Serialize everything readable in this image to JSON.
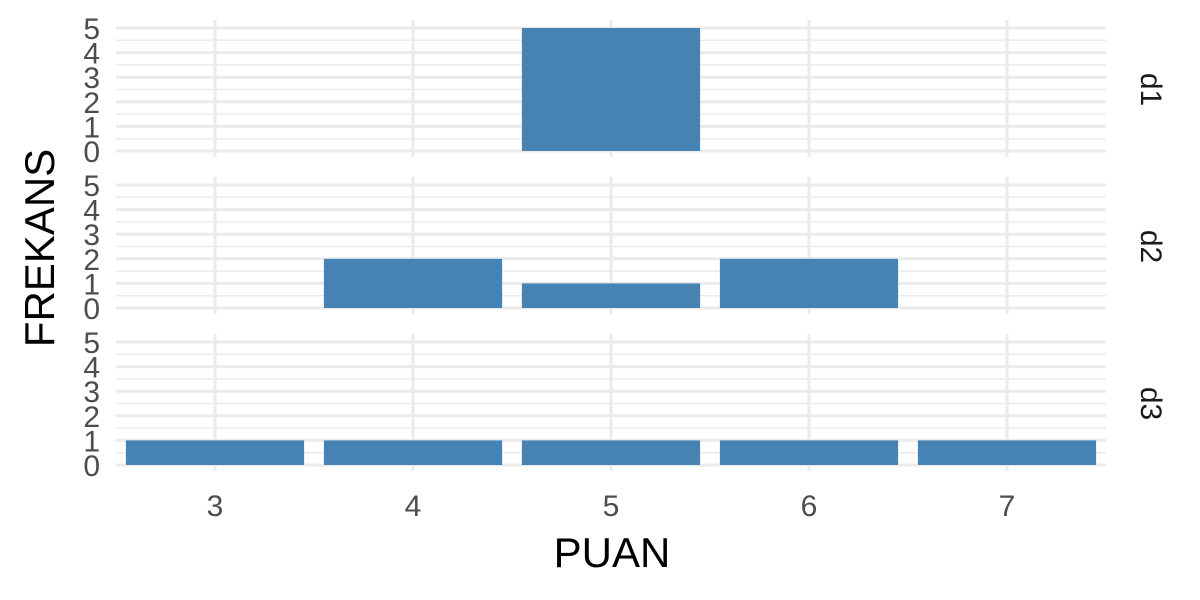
{
  "chart_data": {
    "type": "bar",
    "xlabel": "PUAN",
    "ylabel": "FREKANS",
    "x_ticks": [
      "3",
      "4",
      "5",
      "6",
      "7"
    ],
    "y_ticks": [
      "0",
      "1",
      "2",
      "3",
      "4",
      "5"
    ],
    "ylim": [
      0,
      5
    ],
    "xlim": [
      2.5,
      7.5
    ],
    "bar_color": "#4682b4",
    "grid_color": "#ebebeb",
    "grid": true,
    "facets": [
      {
        "label": "d1",
        "points": [
          {
            "x": 5,
            "y": 5
          }
        ]
      },
      {
        "label": "d2",
        "points": [
          {
            "x": 4,
            "y": 2
          },
          {
            "x": 5,
            "y": 1
          },
          {
            "x": 6,
            "y": 2
          }
        ]
      },
      {
        "label": "d3",
        "points": [
          {
            "x": 3,
            "y": 1
          },
          {
            "x": 4,
            "y": 1
          },
          {
            "x": 5,
            "y": 1
          },
          {
            "x": 6,
            "y": 1
          },
          {
            "x": 7,
            "y": 1
          }
        ]
      }
    ]
  }
}
